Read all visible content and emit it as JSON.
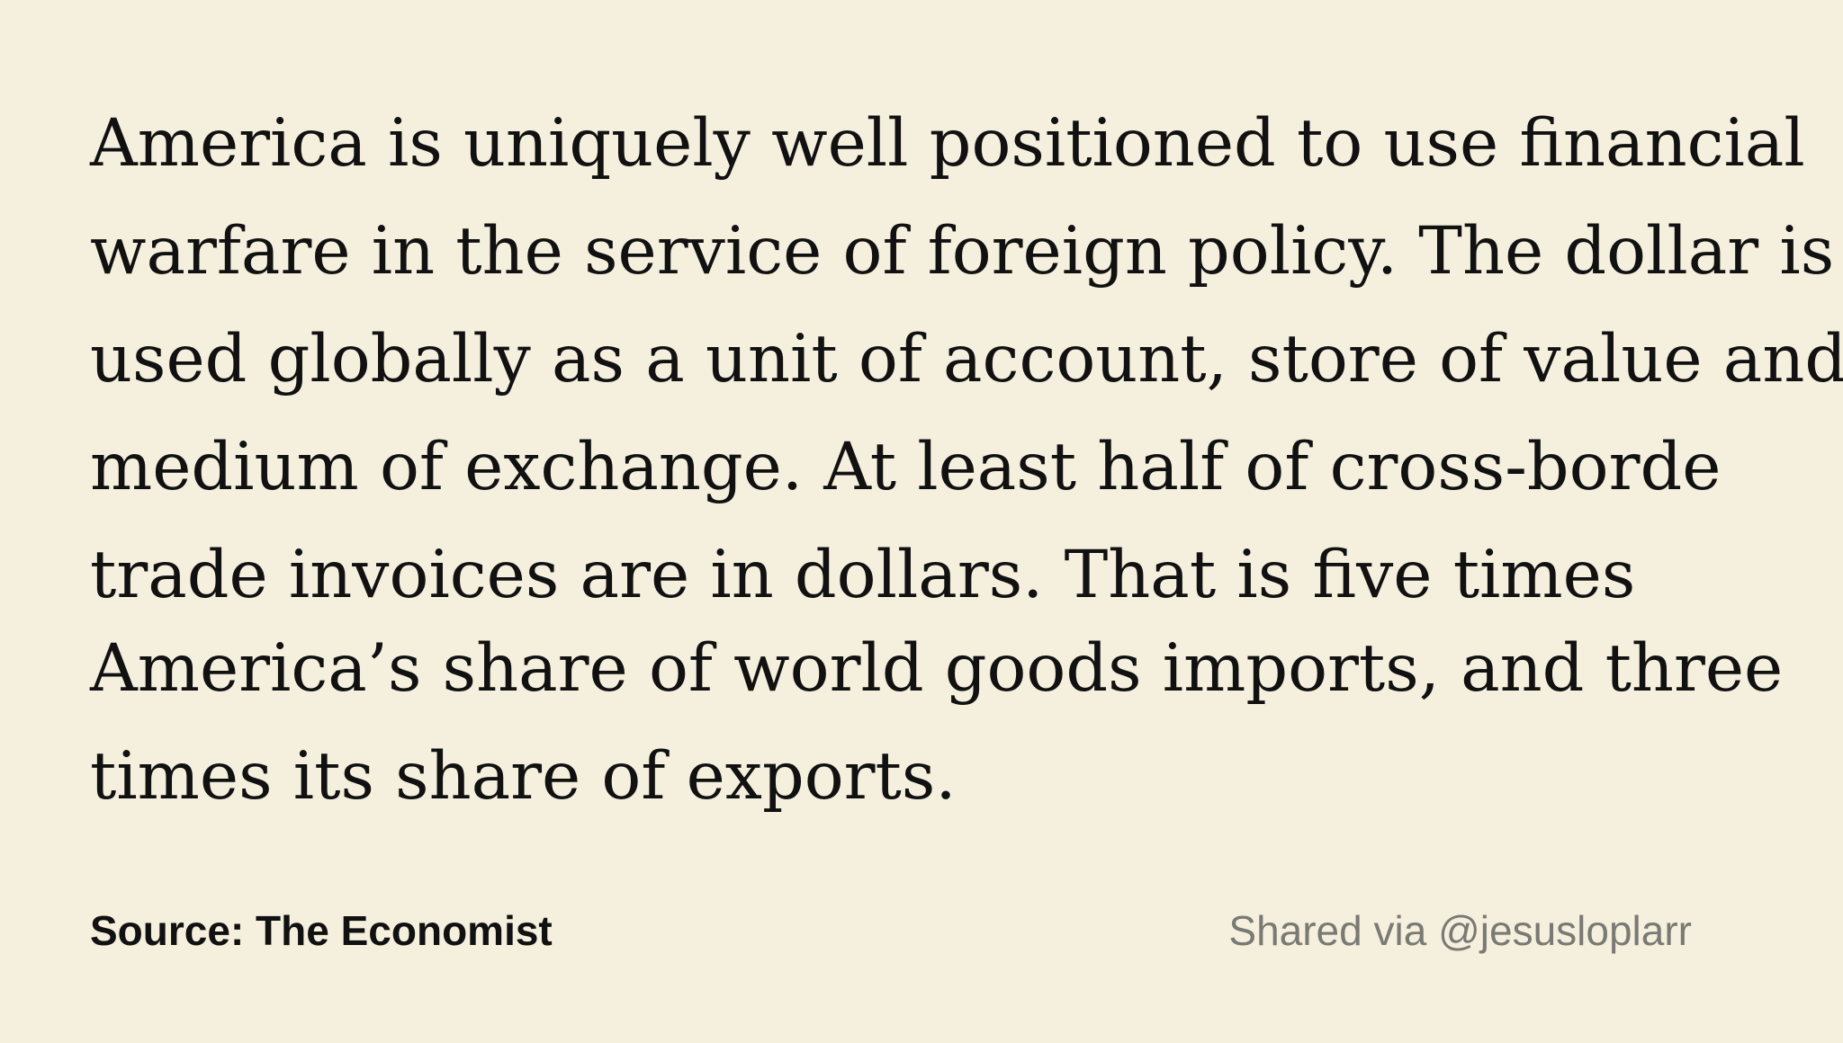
{
  "quote": {
    "lines": [
      "America is uniquely well positioned to use financial",
      "warfare in the service of foreign policy. The dollar is",
      "used globally as a unit of account, store of value and",
      "medium of exchange. At least half of cross-borde",
      "trade invoices are in dollars. That is five times",
      "America’s share of world goods imports, and three",
      "times its share of exports."
    ]
  },
  "footer": {
    "source": "Source: The Economist",
    "shared": "Shared via @jesusloplarr"
  }
}
